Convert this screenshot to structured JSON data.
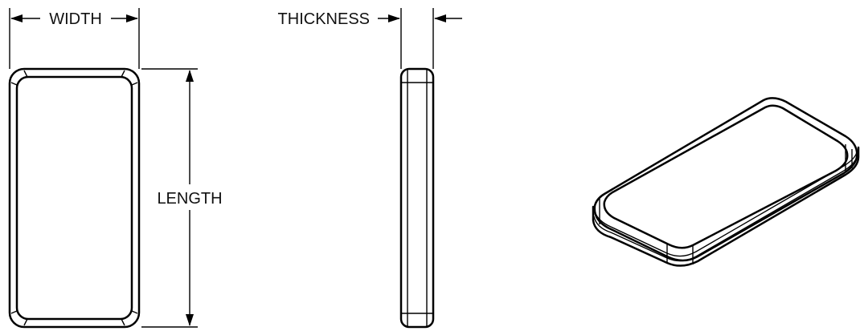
{
  "labels": {
    "width": "WIDTH",
    "thickness": "THICKNESS",
    "length": "LENGTH"
  },
  "colors": {
    "line": "#000000",
    "text": "#111111",
    "background": "#ffffff"
  }
}
